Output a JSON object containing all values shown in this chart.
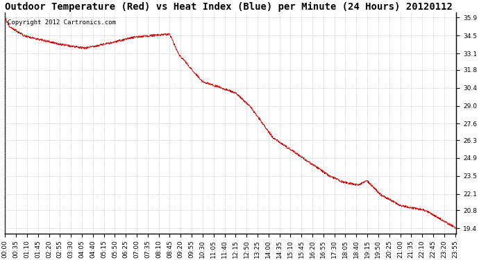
{
  "title": "Outdoor Temperature (Red) vs Heat Index (Blue) per Minute (24 Hours) 20120112",
  "copyright_text": "Copyright 2012 Cartronics.com",
  "line_color": "#cc0000",
  "background_color": "#ffffff",
  "grid_color": "#aaaaaa",
  "yticks": [
    19.4,
    20.8,
    22.1,
    23.5,
    24.9,
    26.3,
    27.6,
    29.0,
    30.4,
    31.8,
    33.1,
    34.5,
    35.9
  ],
  "ymin": 19.0,
  "ymax": 36.3,
  "total_minutes": 1440,
  "x_tick_interval": 35,
  "title_fontsize": 10,
  "axis_fontsize": 6.5,
  "copyright_fontsize": 6.5
}
